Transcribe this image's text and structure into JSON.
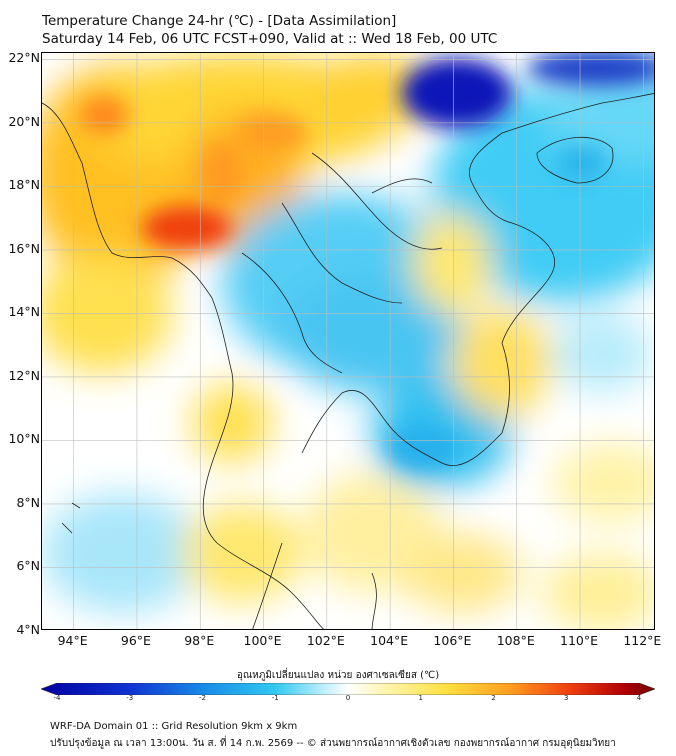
{
  "header": {
    "title": "Temperature Change 24-hr (℃) - [Data Assimilation]",
    "subtitle": "Saturday 14 Feb, 06 UTC FCST+090, Valid at :: Wed 18 Feb, 00 UTC"
  },
  "map": {
    "lat_labels": [
      "22°N",
      "20°N",
      "18°N",
      "16°N",
      "14°N",
      "12°N",
      "10°N",
      "8°N",
      "6°N",
      "4°N"
    ],
    "lat_values": [
      22,
      20,
      18,
      16,
      14,
      12,
      10,
      8,
      6,
      4
    ],
    "lon_labels": [
      "94°E",
      "96°E",
      "98°E",
      "100°E",
      "102°E",
      "104°E",
      "106°E",
      "108°E",
      "110°E",
      "112°E"
    ],
    "lon_values": [
      94,
      96,
      98,
      100,
      102,
      104,
      106,
      108,
      110,
      112
    ],
    "extent": {
      "lon_min": 93,
      "lon_max": 112.4,
      "lat_min": 4,
      "lat_max": 22.2
    }
  },
  "colorbar": {
    "title": "อุณหภูมิเปลี่ยนแปลง หน่วย องศาเซลเซียส (℃)",
    "ticks": [
      "-4",
      "-3",
      "-2",
      "-1",
      "0",
      "1",
      "2",
      "3",
      "4"
    ],
    "colors": {
      "cold_extreme": "#0000a0",
      "cold": "#22b8e8",
      "neutral": "#ffffff",
      "warm": "#ffe040",
      "hot": "#ff7000",
      "hot_extreme": "#800000"
    }
  },
  "footer": {
    "line1": "WRF-DA Domain 01 :: Grid Resolution 9km x 9km",
    "line2": "ปรับปรุงข้อมูล ณ เวลา 13:00น. วัน ส. ที่ 14 ก.พ. 2569 -- © ส่วนพยากรณ์อากาศเชิงตัวเลข กองพยากรณ์อากาศ กรมอุตุนิยมวิทยา"
  }
}
